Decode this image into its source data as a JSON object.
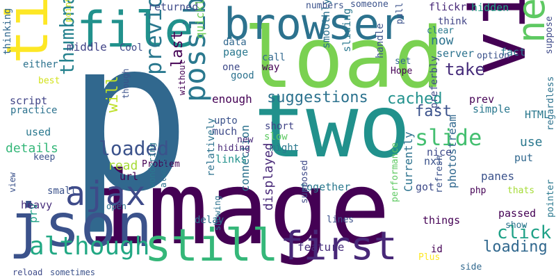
{
  "words": [
    {
      "text": "image",
      "color": "#440154"
    },
    {
      "text": "p",
      "color": "#31688e"
    },
    {
      "text": "two",
      "color": "#21918c"
    },
    {
      "text": "load",
      "color": "#7ad151"
    },
    {
      "text": "via",
      "color": "#440154"
    },
    {
      "text": "time",
      "color": "#fde725"
    },
    {
      "text": "json",
      "color": "#3b528b"
    },
    {
      "text": "file",
      "color": "#21918c"
    },
    {
      "text": "browser",
      "color": "#2c728e"
    },
    {
      "text": "still",
      "color": "#35b779"
    },
    {
      "text": "first",
      "color": "#482878"
    },
    {
      "text": "next",
      "color": "#5ec962"
    },
    {
      "text": "ajax",
      "color": "#3e4a89"
    },
    {
      "text": "possible",
      "color": "#2a788e"
    },
    {
      "text": "although",
      "color": "#22a884"
    },
    {
      "text": "loaded",
      "color": "#3b528b"
    },
    {
      "text": "thumbnails",
      "color": "#26828e"
    },
    {
      "text": "previous",
      "color": "#2a788e"
    },
    {
      "text": "slide",
      "color": "#44bf70"
    },
    {
      "text": "suggestions",
      "color": "#2c728e"
    },
    {
      "text": "take",
      "color": "#472d7b"
    },
    {
      "text": "cached",
      "color": "#21918c"
    },
    {
      "text": "fast",
      "color": "#3b528b"
    },
    {
      "text": "click",
      "color": "#1fa187"
    },
    {
      "text": "loading",
      "color": "#31688e"
    },
    {
      "text": "details",
      "color": "#35b779"
    },
    {
      "text": "will",
      "color": "#bddf26"
    },
    {
      "text": "last",
      "color": "#440154"
    },
    {
      "text": "now",
      "color": "#2c728e"
    },
    {
      "text": "middle",
      "color": "#414487"
    },
    {
      "text": "read",
      "color": "#a5db36"
    },
    {
      "text": "use",
      "color": "#2a788e"
    },
    {
      "text": "quickly",
      "color": "#6ece58"
    },
    {
      "text": "prv",
      "color": "#1fa187"
    },
    {
      "text": "connection",
      "color": "#2c728e"
    },
    {
      "text": "displayed",
      "color": "#482878"
    },
    {
      "text": "feature",
      "color": "#472d7b"
    },
    {
      "text": "Currently",
      "color": "#2c728e"
    },
    {
      "text": "photostream",
      "color": "#31688e"
    },
    {
      "text": "enough",
      "color": "#440154"
    },
    {
      "text": "panes",
      "color": "#3b528b"
    },
    {
      "text": "HTML",
      "color": "#2a788e"
    },
    {
      "text": "returned",
      "color": "#3e4a89"
    },
    {
      "text": "flickr",
      "color": "#482878"
    },
    {
      "text": "hidden",
      "color": "#20a486"
    },
    {
      "text": "fact",
      "color": "#2a788e"
    },
    {
      "text": "server",
      "color": "#2c728e"
    },
    {
      "text": "small",
      "color": "#3b528b"
    },
    {
      "text": "heavy",
      "color": "#472d7b"
    },
    {
      "text": "links",
      "color": "#21918c"
    },
    {
      "text": "much",
      "color": "#3e4a89"
    },
    {
      "text": "together",
      "color": "#2a788e"
    },
    {
      "text": "got",
      "color": "#3e4a89"
    },
    {
      "text": "things",
      "color": "#440154"
    },
    {
      "text": "passed",
      "color": "#440154"
    },
    {
      "text": "nice",
      "color": "#3e4a89"
    },
    {
      "text": "nxt",
      "color": "#3b528b"
    },
    {
      "text": "slow",
      "color": "#5ec962"
    },
    {
      "text": "simple",
      "color": "#2a788e"
    },
    {
      "text": "prev",
      "color": "#440154"
    },
    {
      "text": "used",
      "color": "#2a788e"
    },
    {
      "text": "script",
      "color": "#414487"
    },
    {
      "text": "practice",
      "color": "#2c728e"
    },
    {
      "text": "either",
      "color": "#2c728e"
    },
    {
      "text": "thinking",
      "color": "#31688e"
    },
    {
      "text": "Cool",
      "color": "#3e4a89"
    },
    {
      "text": "url",
      "color": "#440154"
    },
    {
      "text": "page",
      "color": "#2a788e"
    },
    {
      "text": "data",
      "color": "#31688e"
    },
    {
      "text": "one",
      "color": "#3e4a89"
    },
    {
      "text": "good",
      "color": "#2c728e"
    },
    {
      "text": "call",
      "color": "#31688e"
    },
    {
      "text": "way",
      "color": "#440154"
    },
    {
      "text": "Hope",
      "color": "#440154"
    },
    {
      "text": "set",
      "color": "#31688e"
    },
    {
      "text": "smoothly",
      "color": "#2c728e"
    },
    {
      "text": "sliding",
      "color": "#2a788e"
    },
    {
      "text": "handle",
      "color": "#3b528b"
    },
    {
      "text": "numbers",
      "color": "#3b528b"
    },
    {
      "text": "someone",
      "color": "#3b528b"
    },
    {
      "text": "think",
      "color": "#414487"
    },
    {
      "text": "clear",
      "color": "#2a788e"
    },
    {
      "text": "pull",
      "color": "#3b528b"
    },
    {
      "text": "option",
      "color": "#3b528b"
    },
    {
      "text": "suppose",
      "color": "#3e4a89"
    },
    {
      "text": "preferbly",
      "color": "#3e4a89"
    },
    {
      "text": "regardless",
      "color": "#2c728e"
    },
    {
      "text": "put",
      "color": "#31688e"
    },
    {
      "text": "short",
      "color": "#414487"
    },
    {
      "text": "upto",
      "color": "#3b528b"
    },
    {
      "text": "new",
      "color": "#482878"
    },
    {
      "text": "hiding",
      "color": "#482878"
    },
    {
      "text": "might",
      "color": "#2a788e"
    },
    {
      "text": "Problem",
      "color": "#440154"
    },
    {
      "text": "php",
      "color": "#440154"
    },
    {
      "text": "refresh",
      "color": "#3b528b"
    },
    {
      "text": "thats",
      "color": "#a5db36"
    },
    {
      "text": "performance",
      "color": "#5ec962"
    },
    {
      "text": "relatively",
      "color": "#2c728e"
    },
    {
      "text": "delay",
      "color": "#2c728e"
    },
    {
      "text": "supposed",
      "color": "#3e4a89"
    },
    {
      "text": "lines",
      "color": "#3b528b"
    },
    {
      "text": "id",
      "color": "#440154"
    },
    {
      "text": "Plus",
      "color": "#fde725"
    },
    {
      "text": "side",
      "color": "#31688e"
    },
    {
      "text": "show",
      "color": "#2c728e"
    },
    {
      "text": "pointer",
      "color": "#2a788e"
    },
    {
      "text": "view",
      "color": "#3b528b"
    },
    {
      "text": "keep",
      "color": "#3b528b"
    },
    {
      "text": "best",
      "color": "#d2e21b"
    },
    {
      "text": "point",
      "color": "#d2e21b"
    },
    {
      "text": "though",
      "color": "#3b528b"
    },
    {
      "text": "without",
      "color": "#440154"
    },
    {
      "text": "always",
      "color": "#2c728e"
    },
    {
      "text": "wondering",
      "color": "#2a788e"
    },
    {
      "text": "showing",
      "color": "#2c728e"
    },
    {
      "text": "open",
      "color": "#2c728e"
    },
    {
      "text": "reload",
      "color": "#3e4a89"
    },
    {
      "text": "sometimes",
      "color": "#3b528b"
    }
  ]
}
